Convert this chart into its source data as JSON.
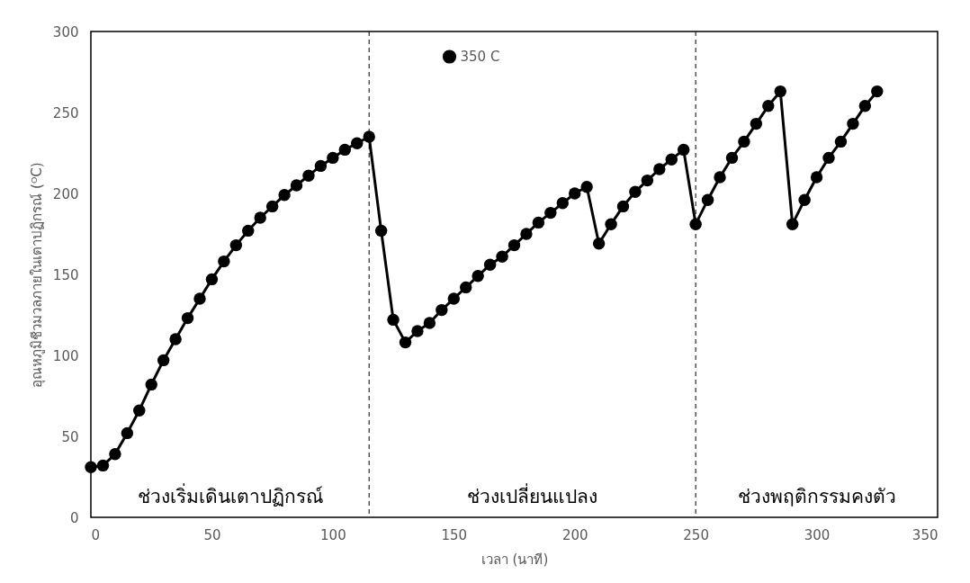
{
  "chart_data": {
    "type": "line",
    "xlabel": "เวลา (นาที)",
    "ylabel": "อุณหภูมิชีวมวลภายในเตาปฏิกรณ์ (ᴼC)",
    "x": [
      0,
      5,
      10,
      15,
      20,
      25,
      30,
      35,
      40,
      45,
      50,
      55,
      60,
      65,
      70,
      75,
      80,
      85,
      90,
      95,
      100,
      105,
      110,
      115,
      120,
      125,
      130,
      135,
      140,
      145,
      150,
      155,
      160,
      165,
      170,
      175,
      180,
      185,
      190,
      195,
      200,
      205,
      210,
      215,
      220,
      225,
      230,
      235,
      240,
      245,
      250,
      255,
      260,
      265,
      270,
      275,
      280,
      285,
      290,
      295,
      300,
      305,
      310,
      315,
      320,
      325
    ],
    "series": [
      {
        "name": "350 C",
        "color": "#000000",
        "values": [
          31,
          32,
          39,
          52,
          66,
          82,
          97,
          110,
          123,
          135,
          147,
          158,
          168,
          177,
          185,
          192,
          199,
          205,
          211,
          217,
          222,
          227,
          231,
          235,
          177,
          122,
          108,
          115,
          120,
          128,
          135,
          142,
          149,
          156,
          161,
          168,
          175,
          182,
          188,
          194,
          200,
          204,
          169,
          181,
          192,
          201,
          208,
          215,
          221,
          227,
          181,
          196,
          210,
          222,
          232,
          243,
          254,
          263,
          181,
          196,
          210,
          222,
          232,
          243,
          254,
          263
        ]
      }
    ],
    "xlim": [
      0,
      350
    ],
    "xticks": [
      0,
      50,
      100,
      150,
      200,
      250,
      300,
      350
    ],
    "ylim": [
      0,
      300
    ],
    "yticks": [
      0,
      50,
      100,
      150,
      200,
      250,
      300
    ],
    "ref_lines": [
      {
        "axis": "x",
        "value": 115,
        "color": "#000000",
        "line_style": "dashed"
      },
      {
        "axis": "x",
        "value": 250,
        "color": "#000000",
        "line_style": "dashed"
      }
    ],
    "annotations": [
      "ช่วงเริ่มเดินเตาปฏิกรณ์",
      "ช่วงเปลี่ยนแปลง",
      "ช่วงพฤติกรรมคงตัว"
    ],
    "grid": false,
    "legend": "top",
    "marker": "circle",
    "line_style": "solid"
  }
}
